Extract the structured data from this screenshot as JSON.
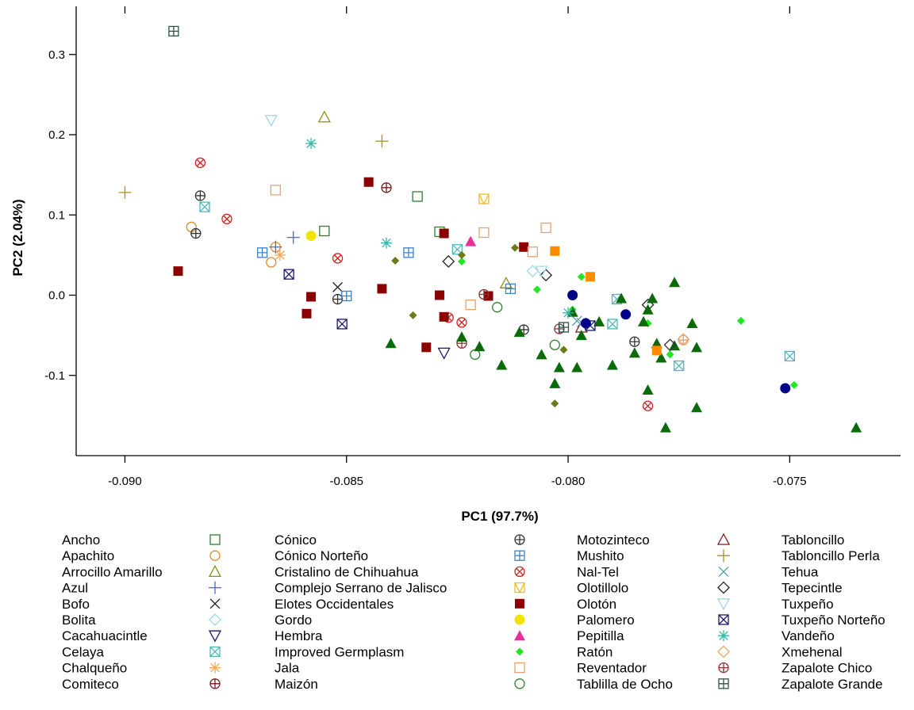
{
  "chart_data": {
    "type": "scatter",
    "title": "",
    "xlabel": "PC1 (97.7%)",
    "ylabel": "PC2 (2.04%)",
    "xlim": [
      -0.0911,
      -0.0725
    ],
    "ylim": [
      -0.2,
      0.36
    ],
    "xticks": [
      -0.09,
      -0.085,
      -0.08,
      -0.075
    ],
    "xtick_labels": [
      "-0.090",
      "-0.085",
      "-0.080",
      "-0.075"
    ],
    "yticks": [
      -0.1,
      0.0,
      0.1,
      0.2,
      0.3
    ],
    "ytick_labels": [
      "-0.1",
      "0.0",
      "0.1",
      "0.2",
      "0.3"
    ],
    "grid": false,
    "legend_position": "bottom",
    "series": [
      {
        "name": "Ancho",
        "marker": "square",
        "color": "#2e7d32",
        "points": [
          [
            -0.0855,
            0.08
          ],
          [
            -0.0834,
            0.123
          ],
          [
            -0.0829,
            0.079
          ]
        ]
      },
      {
        "name": "Apachito",
        "marker": "circle",
        "color": "#e08a2c",
        "points": [
          [
            -0.0885,
            0.085
          ],
          [
            -0.0866,
            0.06
          ],
          [
            -0.0867,
            0.041
          ]
        ]
      },
      {
        "name": "Arrocillo Amarillo",
        "marker": "triangle",
        "color": "#8c8c1a",
        "points": [
          [
            -0.0855,
            0.222
          ],
          [
            -0.0814,
            0.015
          ]
        ]
      },
      {
        "name": "Azul",
        "marker": "plus",
        "color": "#3a6fd8",
        "points": [
          [
            -0.0862,
            0.072
          ],
          [
            -0.0866,
            0.06
          ]
        ]
      },
      {
        "name": "Bofo",
        "marker": "x",
        "color": "#222222",
        "points": [
          [
            -0.0852,
            0.01
          ]
        ]
      },
      {
        "name": "Bolita",
        "marker": "diamond",
        "color": "#9fd8e8",
        "points": [
          [
            -0.0808,
            0.03
          ]
        ]
      },
      {
        "name": "Cacahuacintle",
        "marker": "triangle-down",
        "color": "#1a1a6e",
        "points": [
          [
            -0.0828,
            -0.072
          ]
        ]
      },
      {
        "name": "Celaya",
        "marker": "square-x",
        "color": "#4fb8b8",
        "points": [
          [
            -0.0882,
            0.11
          ],
          [
            -0.0825,
            0.057
          ],
          [
            -0.079,
            -0.036
          ],
          [
            -0.0789,
            -0.005
          ],
          [
            -0.0775,
            -0.088
          ],
          [
            -0.075,
            -0.076
          ]
        ]
      },
      {
        "name": "Chalqueño",
        "marker": "asterisk",
        "color": "#f2a65a",
        "points": [
          [
            -0.0865,
            0.05
          ]
        ]
      },
      {
        "name": "Comiteco",
        "marker": "circle-plus",
        "color": "#7a1a1a",
        "points": [
          [
            -0.0841,
            0.134
          ]
        ]
      },
      {
        "name": "Cónico",
        "marker": "circle-plus",
        "color": "#333333",
        "points": [
          [
            -0.0883,
            0.124
          ],
          [
            -0.0884,
            0.077
          ],
          [
            -0.0852,
            -0.005
          ],
          [
            -0.081,
            -0.043
          ],
          [
            -0.0785,
            -0.058
          ]
        ]
      },
      {
        "name": "Cónico Norteño",
        "marker": "square-plus",
        "color": "#3a82c8",
        "points": [
          [
            -0.0869,
            0.053
          ],
          [
            -0.0836,
            0.053
          ],
          [
            -0.0813,
            0.008
          ],
          [
            -0.085,
            -0.001
          ]
        ]
      },
      {
        "name": "Cristalino de Chihuahua",
        "marker": "circle-x",
        "color": "#d42020",
        "points": [
          [
            -0.0883,
            0.165
          ],
          [
            -0.0877,
            0.095
          ],
          [
            -0.0852,
            0.046
          ],
          [
            -0.0824,
            -0.034
          ],
          [
            -0.0827,
            -0.028
          ],
          [
            -0.0782,
            -0.138
          ]
        ]
      },
      {
        "name": "Complejo Serrano de Jalisco",
        "marker": "square-v",
        "color": "#e8c020",
        "points": [
          [
            -0.0819,
            0.12
          ]
        ]
      },
      {
        "name": "Elotes Occidentales",
        "marker": "square-filled",
        "color": "#8b0000",
        "points": [
          [
            -0.0888,
            0.03
          ],
          [
            -0.0845,
            0.141
          ],
          [
            -0.0828,
            0.077
          ],
          [
            -0.081,
            0.06
          ],
          [
            -0.0858,
            -0.002
          ],
          [
            -0.0859,
            -0.023
          ],
          [
            -0.0842,
            0.008
          ],
          [
            -0.0829,
            0.0
          ],
          [
            -0.0828,
            -0.027
          ],
          [
            -0.0832,
            -0.065
          ],
          [
            -0.0818,
            -0.001
          ]
        ]
      },
      {
        "name": "Gordo",
        "marker": "circle-filled",
        "color": "#f2e400",
        "points": [
          [
            -0.0858,
            0.074
          ]
        ]
      },
      {
        "name": "Hembra",
        "marker": "triangle-filled",
        "color": "#e8309c",
        "points": [
          [
            -0.0822,
            0.067
          ]
        ]
      },
      {
        "name": "Improved Germplasm",
        "marker": "diamond-filled",
        "color": "#22e622",
        "points": [
          [
            -0.0824,
            0.042
          ],
          [
            -0.0807,
            0.007
          ],
          [
            -0.0797,
            0.023
          ],
          [
            -0.0799,
            -0.018
          ],
          [
            -0.0782,
            -0.035
          ],
          [
            -0.0777,
            -0.074
          ],
          [
            -0.0761,
            -0.032
          ],
          [
            -0.0749,
            -0.112
          ]
        ]
      },
      {
        "name": "Jala",
        "marker": "square",
        "color": "#e8a070",
        "points": [
          [
            -0.0866,
            0.131
          ],
          [
            -0.0819,
            0.078
          ],
          [
            -0.0805,
            0.084
          ],
          [
            -0.0808,
            0.054
          ],
          [
            -0.0822,
            -0.012
          ]
        ]
      },
      {
        "name": "Maizón",
        "marker": "circle",
        "color": "#2e7d32",
        "points": [
          [
            -0.0816,
            -0.015
          ],
          [
            -0.0821,
            -0.074
          ],
          [
            -0.0803,
            -0.062
          ]
        ]
      },
      {
        "name": "Motozinteco",
        "marker": "triangle",
        "color": "#7a1a1a",
        "points": [
          [
            -0.0797,
            -0.04
          ]
        ]
      },
      {
        "name": "Mushito",
        "marker": "plus",
        "color": "#a89010",
        "points": [
          [
            -0.09,
            0.128
          ],
          [
            -0.0842,
            0.192
          ]
        ]
      },
      {
        "name": "Nal-Tel",
        "marker": "x",
        "color": "#4aa0b0",
        "points": [
          [
            -0.0798,
            -0.032
          ]
        ]
      },
      {
        "name": "Olotillolo",
        "marker": "diamond",
        "color": "#222222",
        "points": [
          [
            -0.0827,
            0.042
          ],
          [
            -0.0805,
            0.025
          ],
          [
            -0.0782,
            -0.012
          ]
        ]
      },
      {
        "name": "Olotón",
        "marker": "triangle-down",
        "color": "#9fd8e8",
        "points": [
          [
            -0.0867,
            0.218
          ]
        ]
      },
      {
        "name": "Palomero",
        "marker": "square-x",
        "color": "#1a1a6e",
        "points": [
          [
            -0.0863,
            0.026
          ],
          [
            -0.0851,
            -0.036
          ]
        ]
      },
      {
        "name": "Pepitilla",
        "marker": "asterisk",
        "color": "#30b8a8",
        "points": [
          [
            -0.0858,
            0.189
          ],
          [
            -0.0841,
            0.065
          ]
        ]
      },
      {
        "name": "Ratón",
        "marker": "diamond",
        "color": "#f2a65a",
        "points": [
          [
            -0.0774,
            -0.055
          ]
        ]
      },
      {
        "name": "Reventador",
        "marker": "circle-plus",
        "color": "#8b3030",
        "points": [
          [
            -0.0819,
            0.001
          ],
          [
            -0.0824,
            -0.06
          ]
        ]
      },
      {
        "name": "Tablilla de Ocho",
        "marker": "square-plus",
        "color": "#2f4f4f",
        "points": [
          [
            -0.0889,
            0.329
          ]
        ]
      },
      {
        "name": "Tabloncillo",
        "marker": "triangle-filled",
        "color": "#0b6b0b",
        "points": [
          [
            -0.084,
            -0.06
          ],
          [
            -0.0824,
            -0.052
          ],
          [
            -0.082,
            -0.064
          ],
          [
            -0.0811,
            -0.046
          ],
          [
            -0.0815,
            -0.087
          ],
          [
            -0.0806,
            -0.074
          ],
          [
            -0.0802,
            -0.09
          ],
          [
            -0.0803,
            -0.11
          ],
          [
            -0.0799,
            -0.021
          ],
          [
            -0.0798,
            -0.09
          ],
          [
            -0.0797,
            -0.05
          ],
          [
            -0.0793,
            -0.033
          ],
          [
            -0.079,
            -0.087
          ],
          [
            -0.0788,
            -0.004
          ],
          [
            -0.0785,
            -0.072
          ],
          [
            -0.0783,
            -0.033
          ],
          [
            -0.0782,
            -0.018
          ],
          [
            -0.0781,
            -0.004
          ],
          [
            -0.078,
            -0.06
          ],
          [
            -0.0779,
            -0.078
          ],
          [
            -0.0778,
            -0.165
          ],
          [
            -0.0782,
            -0.118
          ],
          [
            -0.0776,
            0.016
          ],
          [
            -0.0772,
            -0.035
          ],
          [
            -0.0771,
            -0.065
          ],
          [
            -0.0771,
            -0.14
          ],
          [
            -0.0735,
            -0.165
          ],
          [
            -0.0776,
            -0.063
          ]
        ]
      },
      {
        "name": "Tabloncillo Perla",
        "marker": "diamond-filled",
        "color": "#6b7a1a",
        "points": [
          [
            -0.0835,
            -0.025
          ],
          [
            -0.0839,
            0.043
          ],
          [
            -0.0824,
            0.05
          ],
          [
            -0.0812,
            0.059
          ],
          [
            -0.0803,
            -0.135
          ],
          [
            -0.0801,
            -0.068
          ]
        ]
      },
      {
        "name": "Tehua",
        "marker": "x",
        "color": "#8a9ab8",
        "points": [
          [
            -0.0797,
            -0.034
          ]
        ]
      },
      {
        "name": "Tepecintle",
        "marker": "diamond",
        "color": "#333333",
        "points": [
          [
            -0.0777,
            -0.062
          ]
        ]
      },
      {
        "name": "Tuxpeño",
        "marker": "triangle-down",
        "color": "#9fd8e8",
        "points": [
          [
            -0.0806,
            0.03
          ]
        ]
      },
      {
        "name": "Tuxpeño Norteño",
        "marker": "square-x",
        "color": "#1a1a6e",
        "points": [
          [
            -0.0795,
            -0.038
          ]
        ]
      },
      {
        "name": "Vandeño",
        "marker": "asterisk",
        "color": "#30b8a8",
        "points": [
          [
            -0.08,
            -0.022
          ]
        ]
      },
      {
        "name": "Xmehenal",
        "marker": "circle-plus",
        "color": "#e8a070",
        "points": [
          [
            -0.0774,
            -0.056
          ]
        ]
      },
      {
        "name": "Zapalote Chico",
        "marker": "circle-plus",
        "color": "#8b3030",
        "points": [
          [
            -0.0802,
            -0.042
          ]
        ]
      },
      {
        "name": "Zapalote Grande",
        "marker": "square-plus",
        "color": "#2f4f4f",
        "points": [
          [
            -0.0801,
            -0.04
          ]
        ]
      },
      {
        "name": "",
        "marker": "circle-filled",
        "color": "#00008b",
        "points": [
          [
            -0.0799,
            0.0
          ],
          [
            -0.0796,
            -0.035
          ],
          [
            -0.0787,
            -0.024
          ],
          [
            -0.0751,
            -0.116
          ]
        ]
      },
      {
        "name": "",
        "marker": "square-filled",
        "color": "#ff8c00",
        "points": [
          [
            -0.0803,
            0.055
          ],
          [
            -0.0795,
            0.023
          ],
          [
            -0.078,
            -0.069
          ]
        ]
      }
    ],
    "legend": {
      "columns": [
        [
          "Ancho",
          "Apachito",
          "Arrocillo Amarillo",
          "Azul",
          "Bofo",
          "Bolita",
          "Cacahuacintle",
          "Celaya",
          "Chalqueño",
          "Comiteco"
        ],
        [
          "Cónico",
          "Cónico Norteño",
          "Cristalino de Chihuahua",
          "Complejo Serrano de Jalisco",
          "Elotes Occidentales",
          "Gordo",
          "Hembra",
          "Improved Germplasm",
          "Jala",
          "Maizón"
        ],
        [
          "Motozinteco",
          "Mushito",
          "Nal-Tel",
          "Olotillolo",
          "Olotón",
          "Palomero",
          "Pepitilla",
          "Ratón",
          "Reventador",
          "Tablilla de Ocho"
        ],
        [
          "Tabloncillo",
          "Tabloncillo Perla",
          "Tehua",
          "Tepecintle",
          "Tuxpeño",
          "Tuxpeño Norteño",
          "Vandeño",
          "Xmehenal",
          "Zapalote Chico",
          "Zapalote Grande"
        ]
      ]
    }
  }
}
